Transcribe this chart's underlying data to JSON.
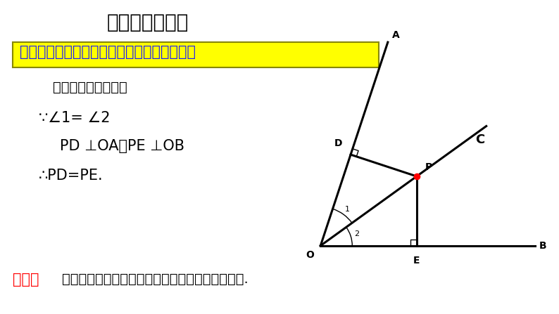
{
  "title": "角平分线的性质",
  "theorem_text": "定理：角平分线上的点到角的两边的距离相等",
  "line1": "用符号语言表示为：",
  "line2": "∵∠1= ∠2",
  "line3": "PD ⊥OA，PE ⊥OB",
  "line4": "∴PD=PE.",
  "hint_prefix": "提示：",
  "hint_text": "这个结论是经常用来证明两条线段相等的根据之一.",
  "bg_color": "#ffffff"
}
